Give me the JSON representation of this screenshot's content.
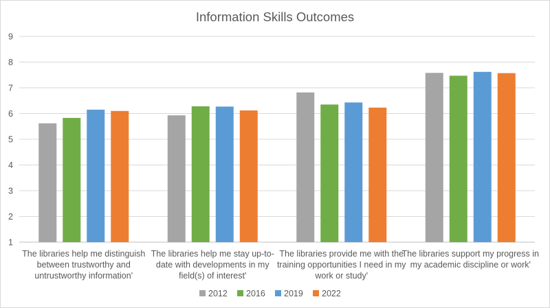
{
  "chart_data": {
    "type": "bar",
    "title": "Information Skills Outcomes",
    "xlabel": "",
    "ylabel": "",
    "ylim": [
      1,
      9
    ],
    "yticks": [
      1,
      2,
      3,
      4,
      5,
      6,
      7,
      8,
      9
    ],
    "grid": true,
    "legend_position": "bottom",
    "categories": [
      [
        "The libraries help me distinguish",
        "between trustworthy and",
        "untrustworthy information'"
      ],
      [
        "The libraries help me stay up-to-",
        "date with developments in my",
        "field(s) of interest'"
      ],
      [
        "The libraries provide me with the",
        "training opportunities I need in my",
        "work or study'"
      ],
      [
        "The libraries support my progress in",
        "my academic discipline or work'"
      ]
    ],
    "series": [
      {
        "name": "2012",
        "color": "#a5a5a5",
        "values": [
          5.62,
          5.93,
          6.82,
          7.58
        ]
      },
      {
        "name": "2016",
        "color": "#70ad47",
        "values": [
          5.83,
          6.28,
          6.35,
          7.47
        ]
      },
      {
        "name": "2019",
        "color": "#5b9bd5",
        "values": [
          6.15,
          6.27,
          6.43,
          7.62
        ]
      },
      {
        "name": "2022",
        "color": "#ed7d31",
        "values": [
          6.1,
          6.12,
          6.23,
          7.57
        ]
      }
    ]
  }
}
